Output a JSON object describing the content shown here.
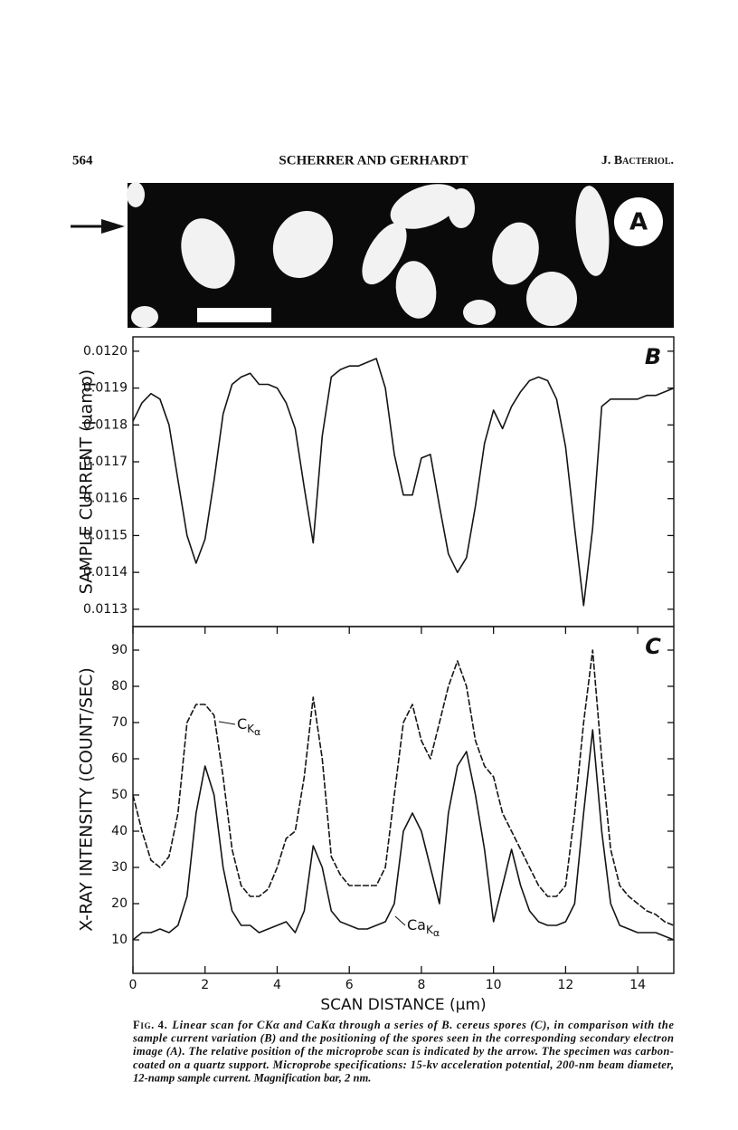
{
  "header": {
    "page_number": "564",
    "authors": "SCHERRER AND GERHARDT",
    "journal": "J. Bacteriol."
  },
  "figure": {
    "panel_a_label": "A"
  },
  "chart_data": [
    {
      "type": "line",
      "panel_label": "B",
      "y_label": "SAMPLE CURRENT (µamp)",
      "color": "#151515",
      "x": [
        0,
        0.25,
        0.5,
        0.75,
        1,
        1.25,
        1.5,
        1.75,
        2,
        2.25,
        2.5,
        2.75,
        3,
        3.25,
        3.5,
        3.75,
        4,
        4.25,
        4.5,
        4.75,
        5,
        5.25,
        5.5,
        5.75,
        6,
        6.25,
        6.5,
        6.75,
        7,
        7.25,
        7.5,
        7.75,
        8,
        8.25,
        8.5,
        8.75,
        9,
        9.25,
        9.5,
        9.75,
        10,
        10.25,
        10.5,
        10.75,
        11,
        11.25,
        11.5,
        11.75,
        12,
        12.25,
        12.5,
        12.75,
        13,
        13.25,
        13.5,
        13.75,
        14,
        14.25,
        14.5,
        14.75,
        15
      ],
      "values": [
        0.01181,
        0.01186,
        0.011885,
        0.01187,
        0.0118,
        0.01165,
        0.0115,
        0.011425,
        0.01149,
        0.01165,
        0.01183,
        0.01191,
        0.01193,
        0.01194,
        0.01191,
        0.01191,
        0.0119,
        0.01186,
        0.01179,
        0.01163,
        0.01148,
        0.01177,
        0.01193,
        0.01195,
        0.01196,
        0.01196,
        0.01197,
        0.01198,
        0.0119,
        0.01172,
        0.01161,
        0.01161,
        0.01171,
        0.01172,
        0.01158,
        0.01145,
        0.0114,
        0.01144,
        0.01158,
        0.01175,
        0.01184,
        0.01179,
        0.01185,
        0.01189,
        0.01192,
        0.01193,
        0.01192,
        0.01187,
        0.01174,
        0.01152,
        0.01131,
        0.01152,
        0.01185,
        0.01187,
        0.01187,
        0.01187,
        0.01187,
        0.01188,
        0.01188,
        0.01189,
        0.0119
      ],
      "xlim": [
        0,
        15
      ],
      "ylim": [
        0.011253,
        0.012039
      ],
      "yticks": [
        {
          "value": 0.012,
          "label": "0.0120"
        },
        0.0119,
        0.0118,
        0.0117,
        0.0116,
        0.0115,
        0.0114,
        0.0113
      ]
    },
    {
      "type": "line",
      "panel_label": "C",
      "y_label": "X-RAY INTENSITY (COUNT/SEC)",
      "x_label": "SCAN DISTANCE (µm)",
      "x": [
        0,
        0.25,
        0.5,
        0.75,
        1,
        1.25,
        1.5,
        1.75,
        2,
        2.25,
        2.5,
        2.75,
        3,
        3.25,
        3.5,
        3.75,
        4,
        4.25,
        4.5,
        4.75,
        5,
        5.25,
        5.5,
        5.75,
        6,
        6.25,
        6.5,
        6.75,
        7,
        7.25,
        7.5,
        7.75,
        8,
        8.25,
        8.5,
        8.75,
        9,
        9.25,
        9.5,
        9.75,
        10,
        10.25,
        10.5,
        10.75,
        11,
        11.25,
        11.5,
        11.75,
        12,
        12.25,
        12.5,
        12.75,
        13,
        13.25,
        13.5,
        13.75,
        14,
        14.25,
        14.5,
        14.75,
        15
      ],
      "series": [
        {
          "color": "#151515",
          "dashed": true,
          "values": [
            50,
            40,
            32,
            30,
            33,
            45,
            70,
            75,
            75,
            72,
            55,
            35,
            25,
            22,
            22,
            24,
            30,
            38,
            40,
            55,
            77,
            60,
            33,
            28,
            25,
            25,
            25,
            25,
            30,
            50,
            70,
            75,
            65,
            60,
            70,
            80,
            87,
            80,
            65,
            58,
            55,
            45,
            40,
            35,
            30,
            25,
            22,
            22,
            25,
            45,
            70,
            90,
            60,
            35,
            25,
            22,
            20,
            18,
            17,
            15,
            14
          ]
        },
        {
          "color": "#151515",
          "dashed": false,
          "values": [
            10,
            12,
            12,
            13,
            12,
            14,
            22,
            45,
            58,
            50,
            30,
            18,
            14,
            14,
            12,
            13,
            14,
            15,
            12,
            18,
            36,
            30,
            18,
            15,
            14,
            13,
            13,
            14,
            15,
            20,
            40,
            45,
            40,
            30,
            20,
            45,
            58,
            62,
            50,
            35,
            15,
            25,
            35,
            25,
            18,
            15,
            14,
            14,
            15,
            20,
            45,
            68,
            40,
            20,
            14,
            13,
            12,
            12,
            12,
            11,
            10
          ]
        }
      ],
      "annotations": [
        {
          "main": "C",
          "sub": "K",
          "subsub": "α"
        },
        {
          "main": "Ca",
          "sub": "K",
          "subsub": "α"
        }
      ],
      "xlim": [
        0,
        15
      ],
      "ylim": [
        0.75,
        96.5
      ],
      "xticks": [
        0,
        2,
        4,
        6,
        8,
        10,
        12,
        14
      ],
      "yticks": [
        10,
        20,
        30,
        40,
        50,
        60,
        70,
        80,
        90
      ]
    }
  ],
  "caption": {
    "figure_label": "Fig. 4.",
    "lines": [
      "Linear scan for CKα and CaKα through a series of B. cereus spores (C), in comparison with the",
      "sample current variation (B) and the positioning of the spores seen in the corresponding secondary electron",
      "image (A). The relative position of the microprobe scan is indicated by the arrow. The specimen was carbon-",
      "coated on a quartz support. Microprobe specifications: 15-kv acceleration potential, 200-nm beam diameter,",
      "12-namp sample current. Magnification bar, 2 nm."
    ]
  }
}
